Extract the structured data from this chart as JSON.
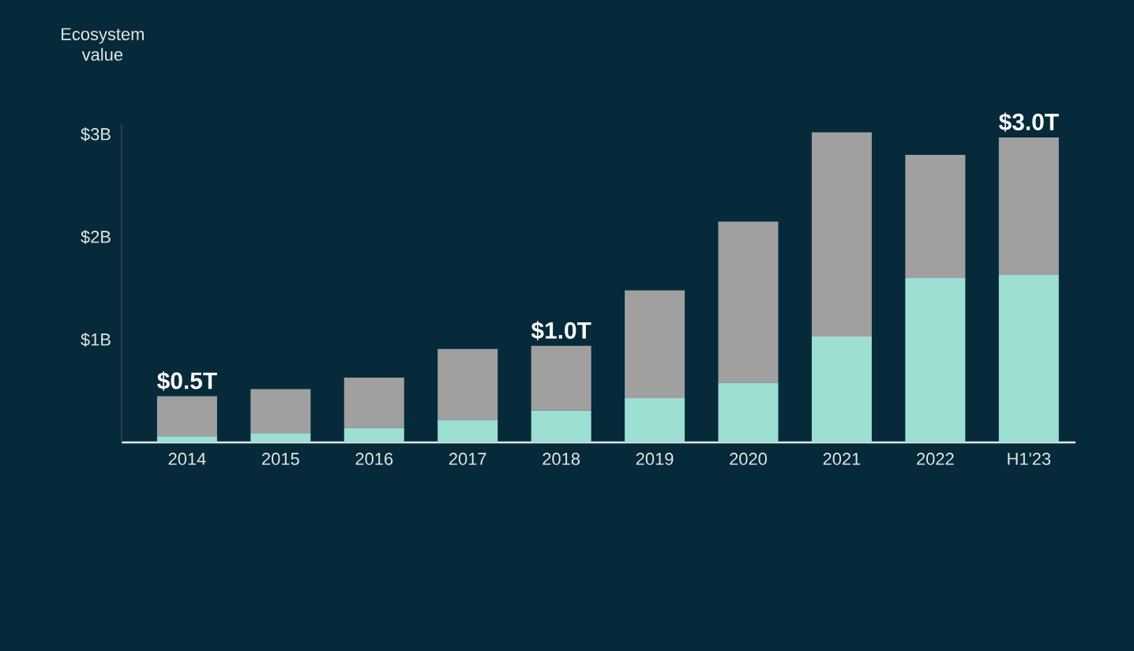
{
  "chart_data": {
    "type": "bar",
    "stacked": true,
    "ylabel": "Ecosystem value",
    "categories": [
      "2014",
      "2015",
      "2016",
      "2017",
      "2018",
      "2019",
      "2020",
      "2021",
      "2022",
      "H1'23"
    ],
    "series": [
      {
        "color": "#9ddfd3",
        "values": [
          0.06,
          0.09,
          0.14,
          0.22,
          0.31,
          0.43,
          0.58,
          1.03,
          1.6,
          1.63
        ]
      },
      {
        "color": "#a0a0a0",
        "values": [
          0.39,
          0.43,
          0.49,
          0.69,
          0.63,
          1.05,
          1.57,
          1.99,
          1.2,
          1.34
        ]
      }
    ],
    "ylim": [
      0,
      3.1
    ],
    "yticks": [
      {
        "value": 1,
        "label": "$1B"
      },
      {
        "value": 2,
        "label": "$2B"
      },
      {
        "value": 3,
        "label": "$3B"
      }
    ],
    "annotations": [
      {
        "text": "$0.5T",
        "x": "2014",
        "y": 0.45
      },
      {
        "text": "$1.0T",
        "x": "2018",
        "y": 0.94
      },
      {
        "text": "$3.0T",
        "x": "H1'23",
        "y": 2.97
      }
    ]
  }
}
